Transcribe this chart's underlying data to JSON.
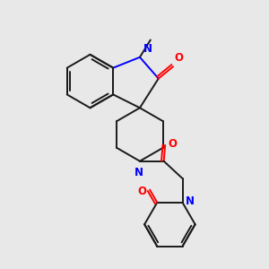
{
  "background_color": "#e8e8e8",
  "bond_color": "#1a1a1a",
  "N_color": "#0000ff",
  "O_color": "#ff0000",
  "line_width": 1.4,
  "figsize": [
    3.0,
    3.0
  ],
  "dpi": 100,
  "xlim": [
    0,
    10
  ],
  "ylim": [
    0,
    10
  ]
}
